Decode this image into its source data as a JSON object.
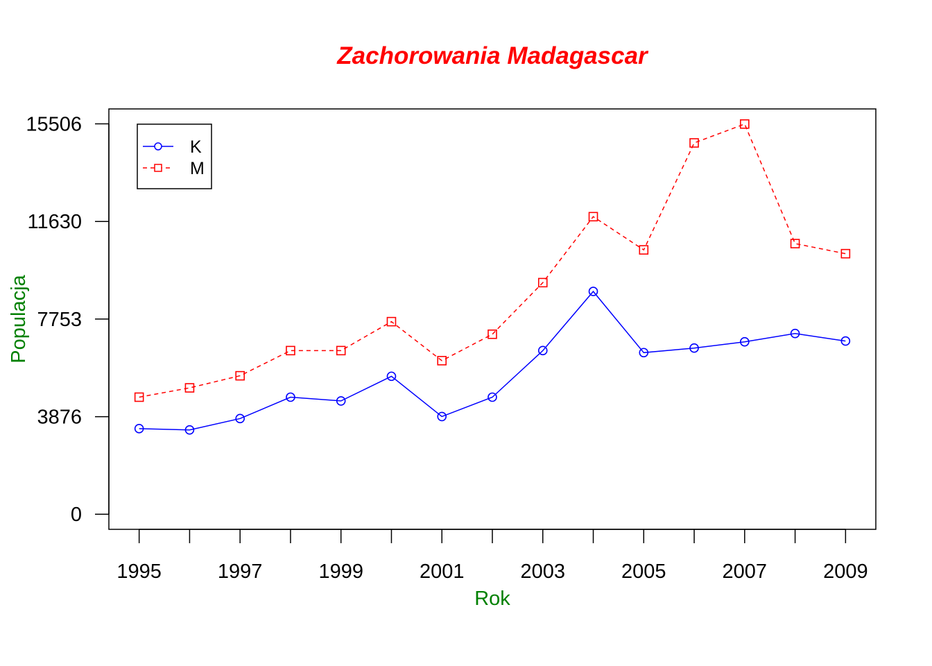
{
  "chart_data": {
    "type": "line",
    "title": "Zachorowania Madagascar",
    "xlabel": "Rok",
    "ylabel": "Populacja",
    "x": [
      1995,
      1996,
      1997,
      1998,
      1999,
      2000,
      2001,
      2002,
      2003,
      2004,
      2005,
      2006,
      2007,
      2008,
      2009
    ],
    "x_tick_labels": [
      "1995",
      "1997",
      "1999",
      "2001",
      "2003",
      "2005",
      "2007",
      "2009"
    ],
    "y_tick_labels": [
      "0",
      "3876",
      "7753",
      "11630",
      "15506"
    ],
    "xlim": [
      1994.4,
      2009.6
    ],
    "ylim": [
      -600,
      16100
    ],
    "grid": false,
    "legend_position": "top-left",
    "series": [
      {
        "name": "K",
        "values": [
          3400,
          3350,
          3800,
          4650,
          4500,
          5480,
          3880,
          4650,
          6500,
          8850,
          6420,
          6600,
          6850,
          7180,
          6880
        ]
      },
      {
        "name": "M",
        "values": [
          4650,
          5020,
          5500,
          6500,
          6500,
          7650,
          6100,
          7150,
          9200,
          11820,
          10500,
          14750,
          15500,
          10750,
          10350
        ]
      }
    ],
    "colors": {
      "title": "#FF0000",
      "axis_titles": "#008000",
      "series_K": "#0000FF",
      "series_M": "#FF0000"
    }
  }
}
